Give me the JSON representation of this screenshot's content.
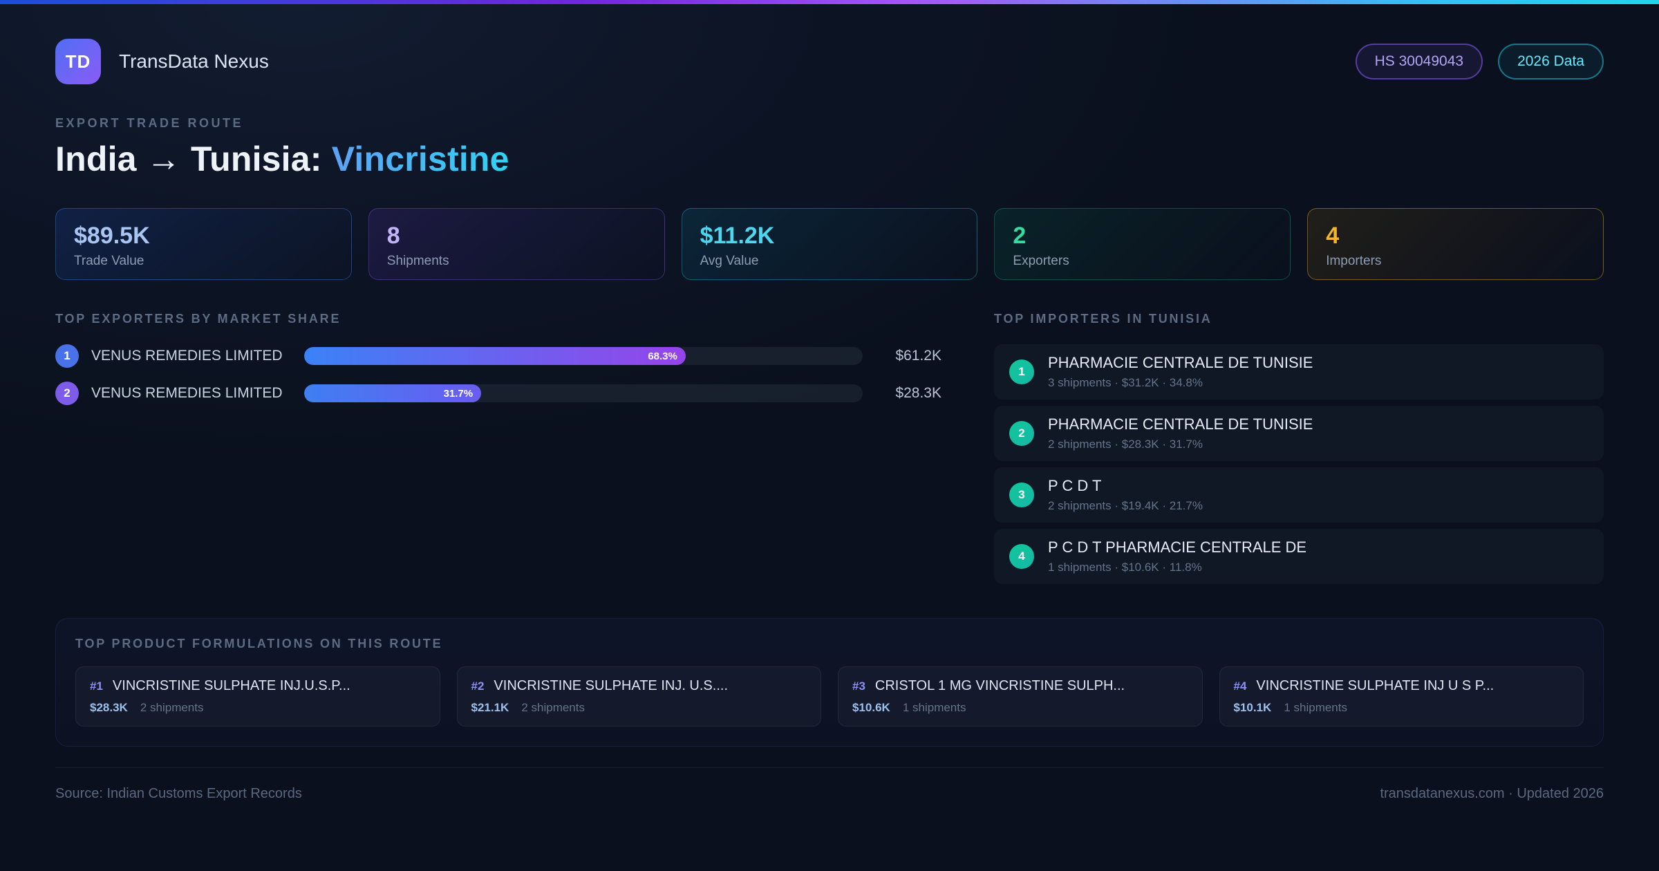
{
  "theme": {
    "background": "#0d1526",
    "accent_blue": "#3b82f6",
    "accent_purple": "#8b5cf6",
    "accent_cyan": "#22d3ee",
    "accent_green": "#10b981",
    "accent_amber": "#f0b429",
    "topbar_gradient": [
      "#1d4ed8",
      "#a855f7",
      "#22d3ee"
    ]
  },
  "header": {
    "logo_text": "TD",
    "brand": "TransData Nexus",
    "hs_badge": "HS 30049043",
    "year_badge": "2026 Data"
  },
  "hero": {
    "eyebrow": "EXPORT TRADE ROUTE",
    "title_main": "India → Tunisia: ",
    "title_product": "Vincristine"
  },
  "stats": [
    {
      "value": "$89.5K",
      "label": "Trade Value"
    },
    {
      "value": "8",
      "label": "Shipments"
    },
    {
      "value": "$11.2K",
      "label": "Avg Value"
    },
    {
      "value": "2",
      "label": "Exporters"
    },
    {
      "value": "4",
      "label": "Importers"
    }
  ],
  "exporters": {
    "title": "TOP EXPORTERS BY MARKET SHARE",
    "rows": [
      {
        "rank": "1",
        "name": "VENUS REMEDIES LIMITED",
        "share_pct": 68.3,
        "share_label": "68.3%",
        "value": "$61.2K"
      },
      {
        "rank": "2",
        "name": "VENUS REMEDIES LIMITED",
        "share_pct": 31.7,
        "share_label": "31.7%",
        "value": "$28.3K"
      }
    ]
  },
  "importers": {
    "title": "TOP IMPORTERS IN TUNISIA",
    "rows": [
      {
        "rank": "1",
        "name": "PHARMACIE CENTRALE DE TUNISIE",
        "meta": "3 shipments · $31.2K · 34.8%"
      },
      {
        "rank": "2",
        "name": "PHARMACIE CENTRALE DE TUNISIE",
        "meta": "2 shipments · $28.3K · 31.7%"
      },
      {
        "rank": "3",
        "name": "P C D T",
        "meta": "2 shipments · $19.4K · 21.7%"
      },
      {
        "rank": "4",
        "name": "P C D T PHARMACIE CENTRALE DE",
        "meta": "1 shipments · $10.6K · 11.8%"
      }
    ]
  },
  "formulations": {
    "title": "TOP PRODUCT FORMULATIONS ON THIS ROUTE",
    "cards": [
      {
        "rank": "#1",
        "name": "VINCRISTINE SULPHATE INJ.U.S.P...",
        "value": "$28.3K",
        "shipments": "2 shipments"
      },
      {
        "rank": "#2",
        "name": "VINCRISTINE SULPHATE INJ. U.S....",
        "value": "$21.1K",
        "shipments": "2 shipments"
      },
      {
        "rank": "#3",
        "name": "CRISTOL 1 MG VINCRISTINE SULPH...",
        "value": "$10.6K",
        "shipments": "1 shipments"
      },
      {
        "rank": "#4",
        "name": "VINCRISTINE SULPHATE INJ U S P...",
        "value": "$10.1K",
        "shipments": "1 shipments"
      }
    ]
  },
  "footer": {
    "source": "Source: Indian Customs Export Records",
    "site": "transdatanexus.com · Updated 2026"
  }
}
